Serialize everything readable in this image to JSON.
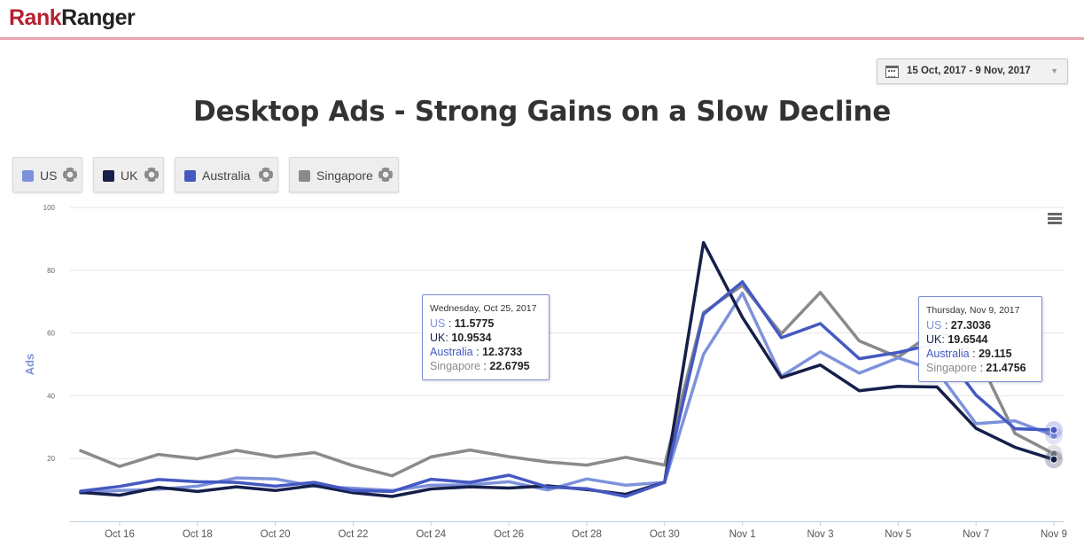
{
  "header": {
    "logo_rank": "Rank",
    "logo_ranger": "Ranger"
  },
  "date_picker": {
    "range": "15 Oct, 2017 - 9 Nov, 2017",
    "icon": "calendar-icon",
    "caret": "▼"
  },
  "colors": {
    "US": "#7e92db",
    "UK": "#161f4a",
    "Australia": "#4459c2",
    "Singapore": "#8a8a8a"
  },
  "legend": [
    {
      "label": "US",
      "color": "#7e92db"
    },
    {
      "label": "UK",
      "color": "#161f4a"
    },
    {
      "label": "Australia",
      "color": "#4459c2"
    },
    {
      "label": "Singapore",
      "color": "#8a8a8a"
    }
  ],
  "tooltip1": {
    "date": "Wednesday, Oct 25, 2017",
    "us_label": "US",
    "us_value": "11.5775",
    "uk_label": "UK",
    "uk_value": "10.9534",
    "au_label": "Australia",
    "au_value": "12.3733",
    "sg_label": "Singapore",
    "sg_value": "22.6795"
  },
  "tooltip2": {
    "date": "Thursday, Nov 9, 2017",
    "us_label": "US",
    "us_value": "27.3036",
    "uk_label": "UK",
    "uk_value": "19.6544",
    "au_label": "Australia",
    "au_value": "29.115",
    "sg_label": "Singapore",
    "sg_value": "21.4756"
  },
  "chart_data": {
    "type": "line",
    "title": "Desktop Ads - Strong Gains on a Slow Decline",
    "xlabel": "",
    "ylabel": "Ads",
    "ylim": [
      0,
      100
    ],
    "yticks": [
      20,
      40,
      60,
      80,
      100
    ],
    "grid": true,
    "x_tick_labels": [
      "Oct 16",
      "Oct 18",
      "Oct 20",
      "Oct 22",
      "Oct 24",
      "Oct 26",
      "Oct 28",
      "Oct 30",
      "Nov 1",
      "Nov 3",
      "Nov 5",
      "Nov 7",
      "Nov 9"
    ],
    "x_tick_index": [
      1,
      3,
      5,
      7,
      9,
      11,
      13,
      15,
      17,
      19,
      21,
      23,
      25
    ],
    "categories": [
      "Oct 15",
      "Oct 16",
      "Oct 17",
      "Oct 18",
      "Oct 19",
      "Oct 20",
      "Oct 21",
      "Oct 22",
      "Oct 23",
      "Oct 24",
      "Oct 25",
      "Oct 26",
      "Oct 27",
      "Oct 28",
      "Oct 29",
      "Oct 30",
      "Oct 31",
      "Nov 1",
      "Nov 2",
      "Nov 3",
      "Nov 4",
      "Nov 5",
      "Nov 6",
      "Nov 7",
      "Nov 8",
      "Nov 9"
    ],
    "series": [
      {
        "name": "Singapore",
        "values": [
          22.5,
          17.5,
          21.3,
          19.9,
          22.6,
          20.5,
          21.9,
          17.7,
          14.5,
          20.5,
          22.7,
          20.6,
          18.9,
          17.9,
          20.4,
          17.9,
          66.5,
          75.2,
          59.8,
          72.9,
          57.5,
          52.3,
          61,
          53.5,
          28,
          21.5
        ]
      },
      {
        "name": "US",
        "values": [
          9,
          9.8,
          10.2,
          11.2,
          13.8,
          13.5,
          11.2,
          10.5,
          9.8,
          11.5,
          11.6,
          12.6,
          10,
          13.5,
          11.5,
          12.4,
          53.2,
          72.7,
          46.2,
          54,
          47.2,
          52.1,
          47.9,
          31.1,
          32,
          27.3
        ]
      },
      {
        "name": "UK",
        "values": [
          9.2,
          8.3,
          10.8,
          9.5,
          11,
          9.8,
          11.4,
          9.1,
          7.9,
          10.3,
          11,
          10.6,
          11.3,
          10.1,
          8.6,
          12.4,
          88.8,
          65,
          45.8,
          49.8,
          41.6,
          43,
          42.8,
          29.6,
          23.6,
          19.7
        ]
      },
      {
        "name": "Australia",
        "values": [
          9.6,
          11.1,
          13.3,
          12.6,
          12.4,
          11.2,
          12.4,
          9.8,
          9.5,
          13.4,
          12.4,
          14.7,
          10.9,
          10.4,
          7.9,
          12.4,
          66,
          76.3,
          58.5,
          63,
          51.8,
          53.8,
          56.6,
          40.2,
          29.5,
          29.1
        ]
      }
    ]
  }
}
